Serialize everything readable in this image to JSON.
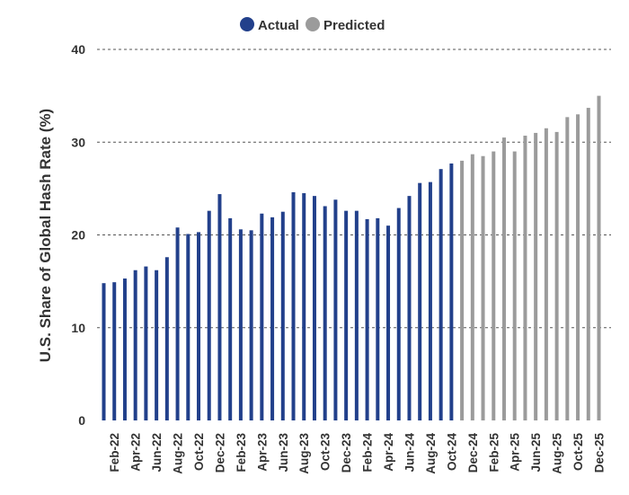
{
  "chart_data": {
    "type": "bar",
    "ylabel": "U.S. Share of Global Hash Rate (%)",
    "ylim": [
      0,
      40
    ],
    "yticks": [
      0,
      10,
      20,
      30,
      40
    ],
    "grid": true,
    "legend_position": "top-center",
    "colors": {
      "actual": "#22408b",
      "predicted": "#9b9b9b",
      "grid": "#555555",
      "text": "#333333"
    },
    "series": [
      {
        "name": "Actual",
        "values": [
          14.8,
          14.9,
          15.3,
          16.2,
          16.6,
          16.2,
          17.6,
          20.8,
          20.1,
          20.3,
          22.6,
          24.4,
          21.8,
          20.6,
          20.5,
          22.3,
          21.9,
          22.5,
          24.6,
          24.5,
          24.2,
          23.1,
          23.8,
          22.6,
          22.6,
          21.7,
          21.8,
          21.0,
          22.9,
          24.2,
          25.6,
          25.7,
          27.1,
          27.7
        ]
      },
      {
        "name": "Predicted",
        "values": [
          28.0,
          28.7,
          28.5,
          29.0,
          30.5,
          29.0,
          30.7,
          31.0,
          31.5,
          31.1,
          32.7,
          33.0,
          33.7,
          35.0
        ]
      }
    ],
    "tick_labels": [
      "Feb-22",
      "Apr-22",
      "Jun-22",
      "Aug-22",
      "Oct-22",
      "Dec-22",
      "Feb-23",
      "Apr-23",
      "Jun-23",
      "Aug-23",
      "Oct-23",
      "Dec-23",
      "Feb-24",
      "Apr-24",
      "Jun-24",
      "Aug-24",
      "Oct-24",
      "Dec-24",
      "Feb-25",
      "Apr-25",
      "Jun-25",
      "Aug-25",
      "Oct-25",
      "Dec-25"
    ]
  }
}
